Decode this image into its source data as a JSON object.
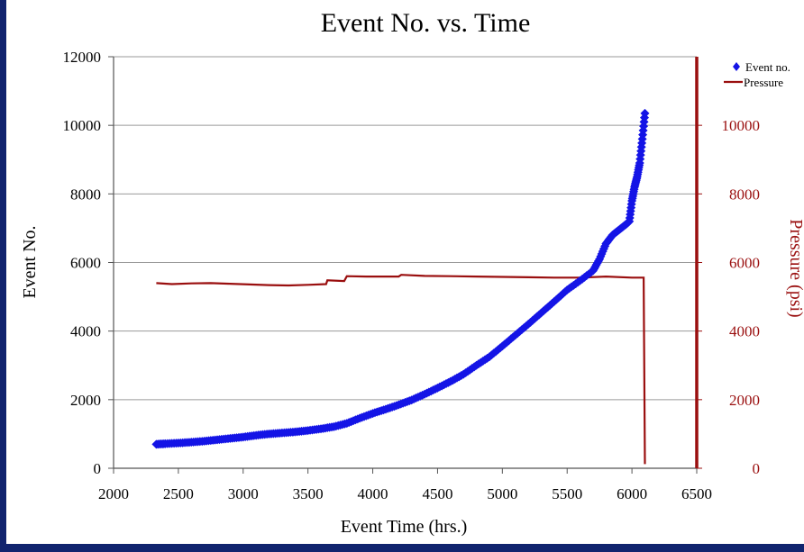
{
  "chart_data": {
    "type": "scatter",
    "title": "Event No. vs. Time",
    "xlabel": "Event Time (hrs.)",
    "ylabel": "Event No.",
    "y2label": "Pressure (psi)",
    "xlim": [
      2000,
      6500
    ],
    "ylim": [
      0,
      12000
    ],
    "y2lim": [
      0,
      12000
    ],
    "xticks": [
      "2000",
      "2500",
      "3000",
      "3500",
      "4000",
      "4500",
      "5000",
      "5500",
      "6000",
      "6500"
    ],
    "yticks": [
      "0",
      "2000",
      "4000",
      "6000",
      "8000",
      "10000",
      "12000"
    ],
    "y2ticks": [
      "0",
      "2000",
      "4000",
      "6000",
      "8000",
      "10000"
    ],
    "grid": true,
    "legend_position": "top-right",
    "series": [
      {
        "name": "Event no.",
        "axis": "left",
        "style": "markers",
        "color": "#1414e6",
        "points": [
          [
            2330,
            700
          ],
          [
            2400,
            715
          ],
          [
            2500,
            735
          ],
          [
            2600,
            760
          ],
          [
            2700,
            790
          ],
          [
            2800,
            830
          ],
          [
            2900,
            870
          ],
          [
            3000,
            910
          ],
          [
            3100,
            960
          ],
          [
            3200,
            1000
          ],
          [
            3300,
            1030
          ],
          [
            3400,
            1060
          ],
          [
            3500,
            1100
          ],
          [
            3600,
            1150
          ],
          [
            3700,
            1210
          ],
          [
            3800,
            1310
          ],
          [
            3900,
            1460
          ],
          [
            4000,
            1600
          ],
          [
            4100,
            1720
          ],
          [
            4200,
            1850
          ],
          [
            4300,
            1990
          ],
          [
            4400,
            2160
          ],
          [
            4500,
            2340
          ],
          [
            4600,
            2530
          ],
          [
            4700,
            2740
          ],
          [
            4800,
            3000
          ],
          [
            4900,
            3250
          ],
          [
            5000,
            3560
          ],
          [
            5100,
            3880
          ],
          [
            5200,
            4200
          ],
          [
            5300,
            4530
          ],
          [
            5400,
            4860
          ],
          [
            5500,
            5200
          ],
          [
            5600,
            5470
          ],
          [
            5700,
            5760
          ],
          [
            5750,
            6100
          ],
          [
            5800,
            6550
          ],
          [
            5850,
            6800
          ],
          [
            5900,
            6950
          ],
          [
            5950,
            7100
          ],
          [
            5980,
            7200
          ],
          [
            6000,
            7800
          ],
          [
            6020,
            8200
          ],
          [
            6040,
            8500
          ],
          [
            6060,
            8900
          ],
          [
            6080,
            9600
          ],
          [
            6100,
            10350
          ]
        ]
      },
      {
        "name": "Pressure",
        "axis": "right",
        "style": "line",
        "color": "#9a0f0f",
        "points": [
          [
            2330,
            5400
          ],
          [
            2450,
            5370
          ],
          [
            2600,
            5390
          ],
          [
            2750,
            5400
          ],
          [
            2900,
            5380
          ],
          [
            3050,
            5360
          ],
          [
            3200,
            5340
          ],
          [
            3350,
            5330
          ],
          [
            3500,
            5350
          ],
          [
            3640,
            5370
          ],
          [
            3650,
            5480
          ],
          [
            3780,
            5460
          ],
          [
            3800,
            5600
          ],
          [
            3950,
            5590
          ],
          [
            4100,
            5590
          ],
          [
            4200,
            5590
          ],
          [
            4220,
            5640
          ],
          [
            4400,
            5610
          ],
          [
            4600,
            5600
          ],
          [
            4800,
            5590
          ],
          [
            5000,
            5580
          ],
          [
            5200,
            5570
          ],
          [
            5400,
            5560
          ],
          [
            5600,
            5560
          ],
          [
            5800,
            5590
          ],
          [
            6000,
            5560
          ],
          [
            6090,
            5560
          ],
          [
            6100,
            120
          ]
        ]
      }
    ]
  },
  "colors": {
    "background": "#11246e",
    "left_axis": "#555555",
    "right_axis": "#9a0f0f",
    "gridline": "#9a9a9a"
  }
}
